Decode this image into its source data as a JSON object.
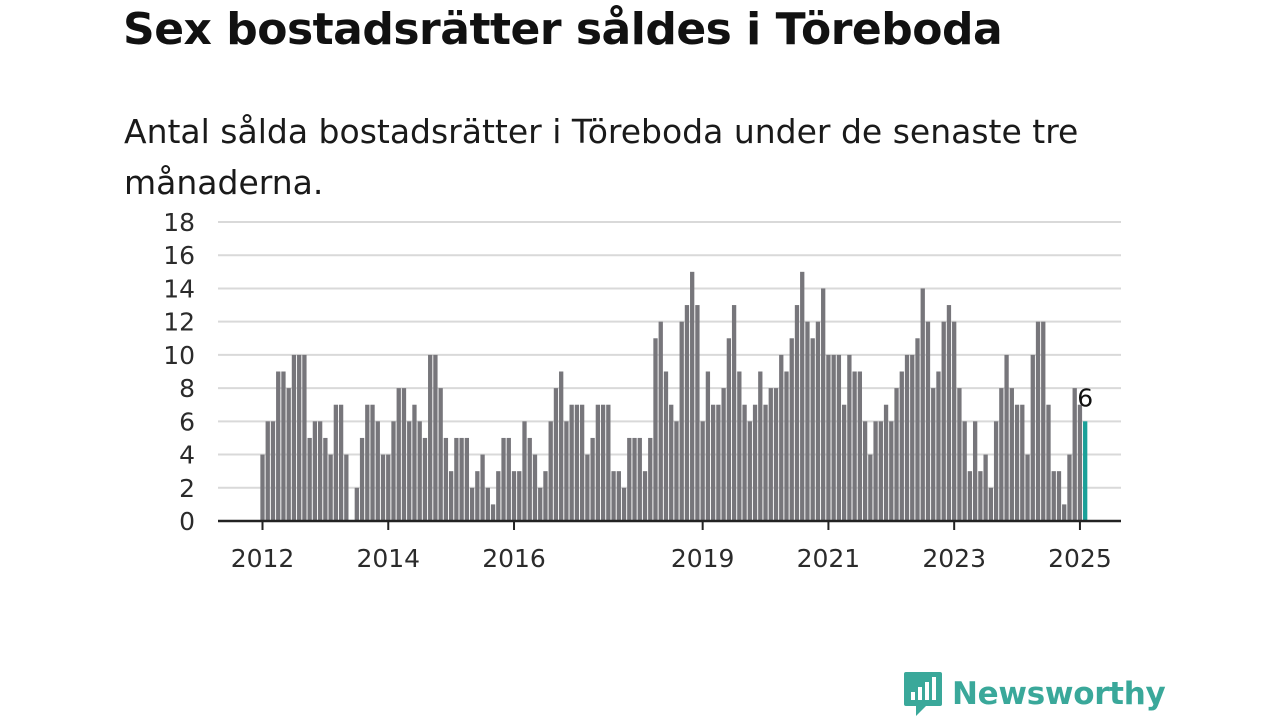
{
  "title": "Sex bostadsrätter såldes i Töreboda",
  "subtitle": "Antal sålda bostadsrätter i Töreboda under de senaste tre månaderna.",
  "logo_text": "Newsworthy",
  "colors": {
    "bar": "#77767b",
    "highlight": "#1aa098",
    "grid": "#d9d9d9",
    "axis": "#222222",
    "brand": "#3aa89a"
  },
  "chart_data": {
    "type": "bar",
    "title": "Sex bostadsrätter såldes i Töreboda",
    "subtitle": "Antal sålda bostadsrätter i Töreboda under de senaste tre månaderna.",
    "xlabel": "",
    "ylabel": "",
    "ylim": [
      0,
      18
    ],
    "yticks": [
      "0",
      "2",
      "4",
      "6",
      "8",
      "10",
      "12",
      "14",
      "16",
      "18"
    ],
    "xticks": [
      "2012",
      "2014",
      "2016",
      "2019",
      "2021",
      "2023",
      "2025"
    ],
    "grid": true,
    "legend": "none",
    "start": "2012-01",
    "end": "2025-01",
    "frequency": "monthly",
    "values": [
      4,
      6,
      6,
      9,
      9,
      8,
      10,
      10,
      10,
      5,
      6,
      6,
      5,
      4,
      7,
      7,
      4,
      0,
      2,
      5,
      7,
      7,
      6,
      4,
      4,
      6,
      8,
      8,
      6,
      7,
      6,
      5,
      10,
      10,
      8,
      5,
      3,
      5,
      5,
      5,
      2,
      3,
      4,
      2,
      1,
      3,
      5,
      5,
      3,
      3,
      6,
      5,
      4,
      2,
      3,
      6,
      8,
      9,
      6,
      7,
      7,
      7,
      4,
      5,
      7,
      7,
      7,
      3,
      3,
      2,
      5,
      5,
      5,
      3,
      5,
      11,
      12,
      9,
      7,
      6,
      12,
      13,
      15,
      13,
      6,
      9,
      7,
      7,
      8,
      11,
      13,
      9,
      7,
      6,
      7,
      9,
      7,
      8,
      8,
      10,
      9,
      11,
      13,
      15,
      12,
      11,
      12,
      14,
      10,
      10,
      10,
      7,
      10,
      9,
      9,
      6,
      4,
      6,
      6,
      7,
      6,
      8,
      9,
      10,
      10,
      11,
      14,
      12,
      8,
      9,
      12,
      13,
      12,
      8,
      6,
      3,
      6,
      3,
      4,
      2,
      6,
      8,
      10,
      8,
      7,
      7,
      4,
      10,
      12,
      12,
      7,
      3,
      3,
      1,
      4,
      8,
      7,
      6
    ],
    "highlight_last": true,
    "annotations": [
      {
        "label": "6"
      }
    ]
  }
}
